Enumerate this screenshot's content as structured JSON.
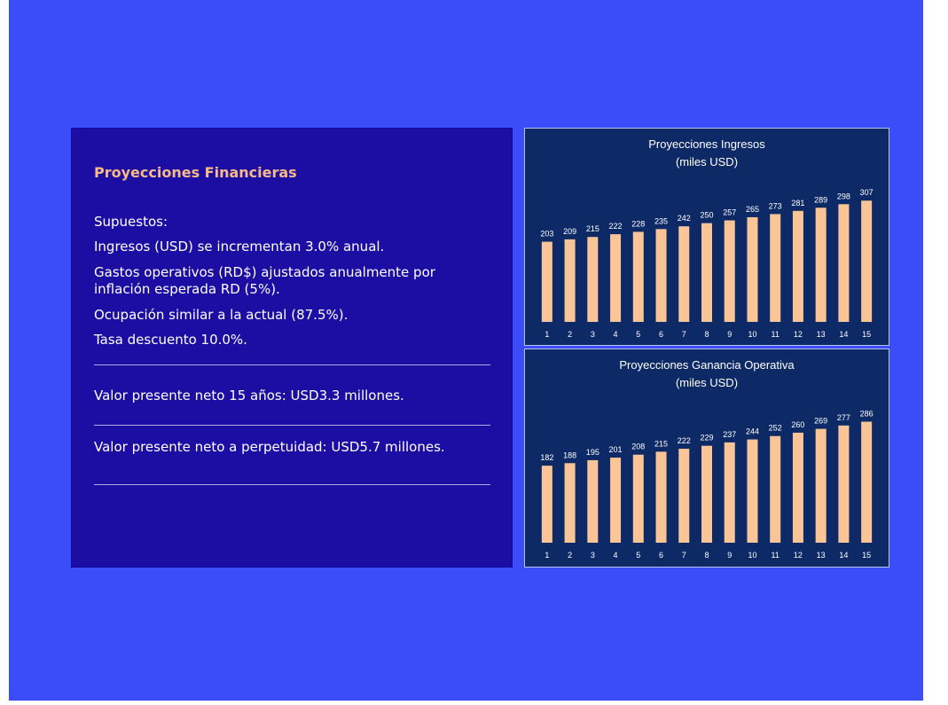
{
  "left": {
    "title": "Proyecciones Financieras",
    "lines": [
      "Supuestos:",
      "Ingresos (USD) se incrementan 3.0% anual.",
      "Gastos operativos (RD$) ajustados anualmente por inflación esperada RD (5%).",
      "Ocupación similar a la actual (87.5%).",
      "Tasa descuento 10.0%.",
      "Valor presente neto 15 años: USD3.3  millones.",
      "Valor presente neto a perpetuidad: USD5.7 millones."
    ]
  },
  "colors": {
    "background": "#3b4cf9",
    "panel": "#1c0ea3",
    "chart_bg": "#0e2a66",
    "bar": "#f9c597",
    "title_accent": "#f6b987"
  },
  "chart_data": [
    {
      "type": "bar",
      "title": "Proyecciones Ingresos",
      "subtitle": "(miles USD)",
      "categories": [
        "1",
        "2",
        "3",
        "4",
        "5",
        "6",
        "7",
        "8",
        "9",
        "10",
        "11",
        "12",
        "13",
        "14",
        "15"
      ],
      "values": [
        203,
        209,
        215,
        222,
        228,
        235,
        242,
        250,
        257,
        265,
        273,
        281,
        289,
        298,
        307
      ],
      "ylim": [
        0,
        330
      ],
      "grid": false
    },
    {
      "type": "bar",
      "title": "Proyecciones Ganancia Operativa",
      "subtitle": "(miles USD)",
      "categories": [
        "1",
        "2",
        "3",
        "4",
        "5",
        "6",
        "7",
        "8",
        "9",
        "10",
        "11",
        "12",
        "13",
        "14",
        "15"
      ],
      "values": [
        182,
        188,
        195,
        201,
        208,
        215,
        222,
        229,
        237,
        244,
        252,
        260,
        269,
        277,
        286
      ],
      "ylim": [
        0,
        308
      ],
      "grid": false
    }
  ]
}
